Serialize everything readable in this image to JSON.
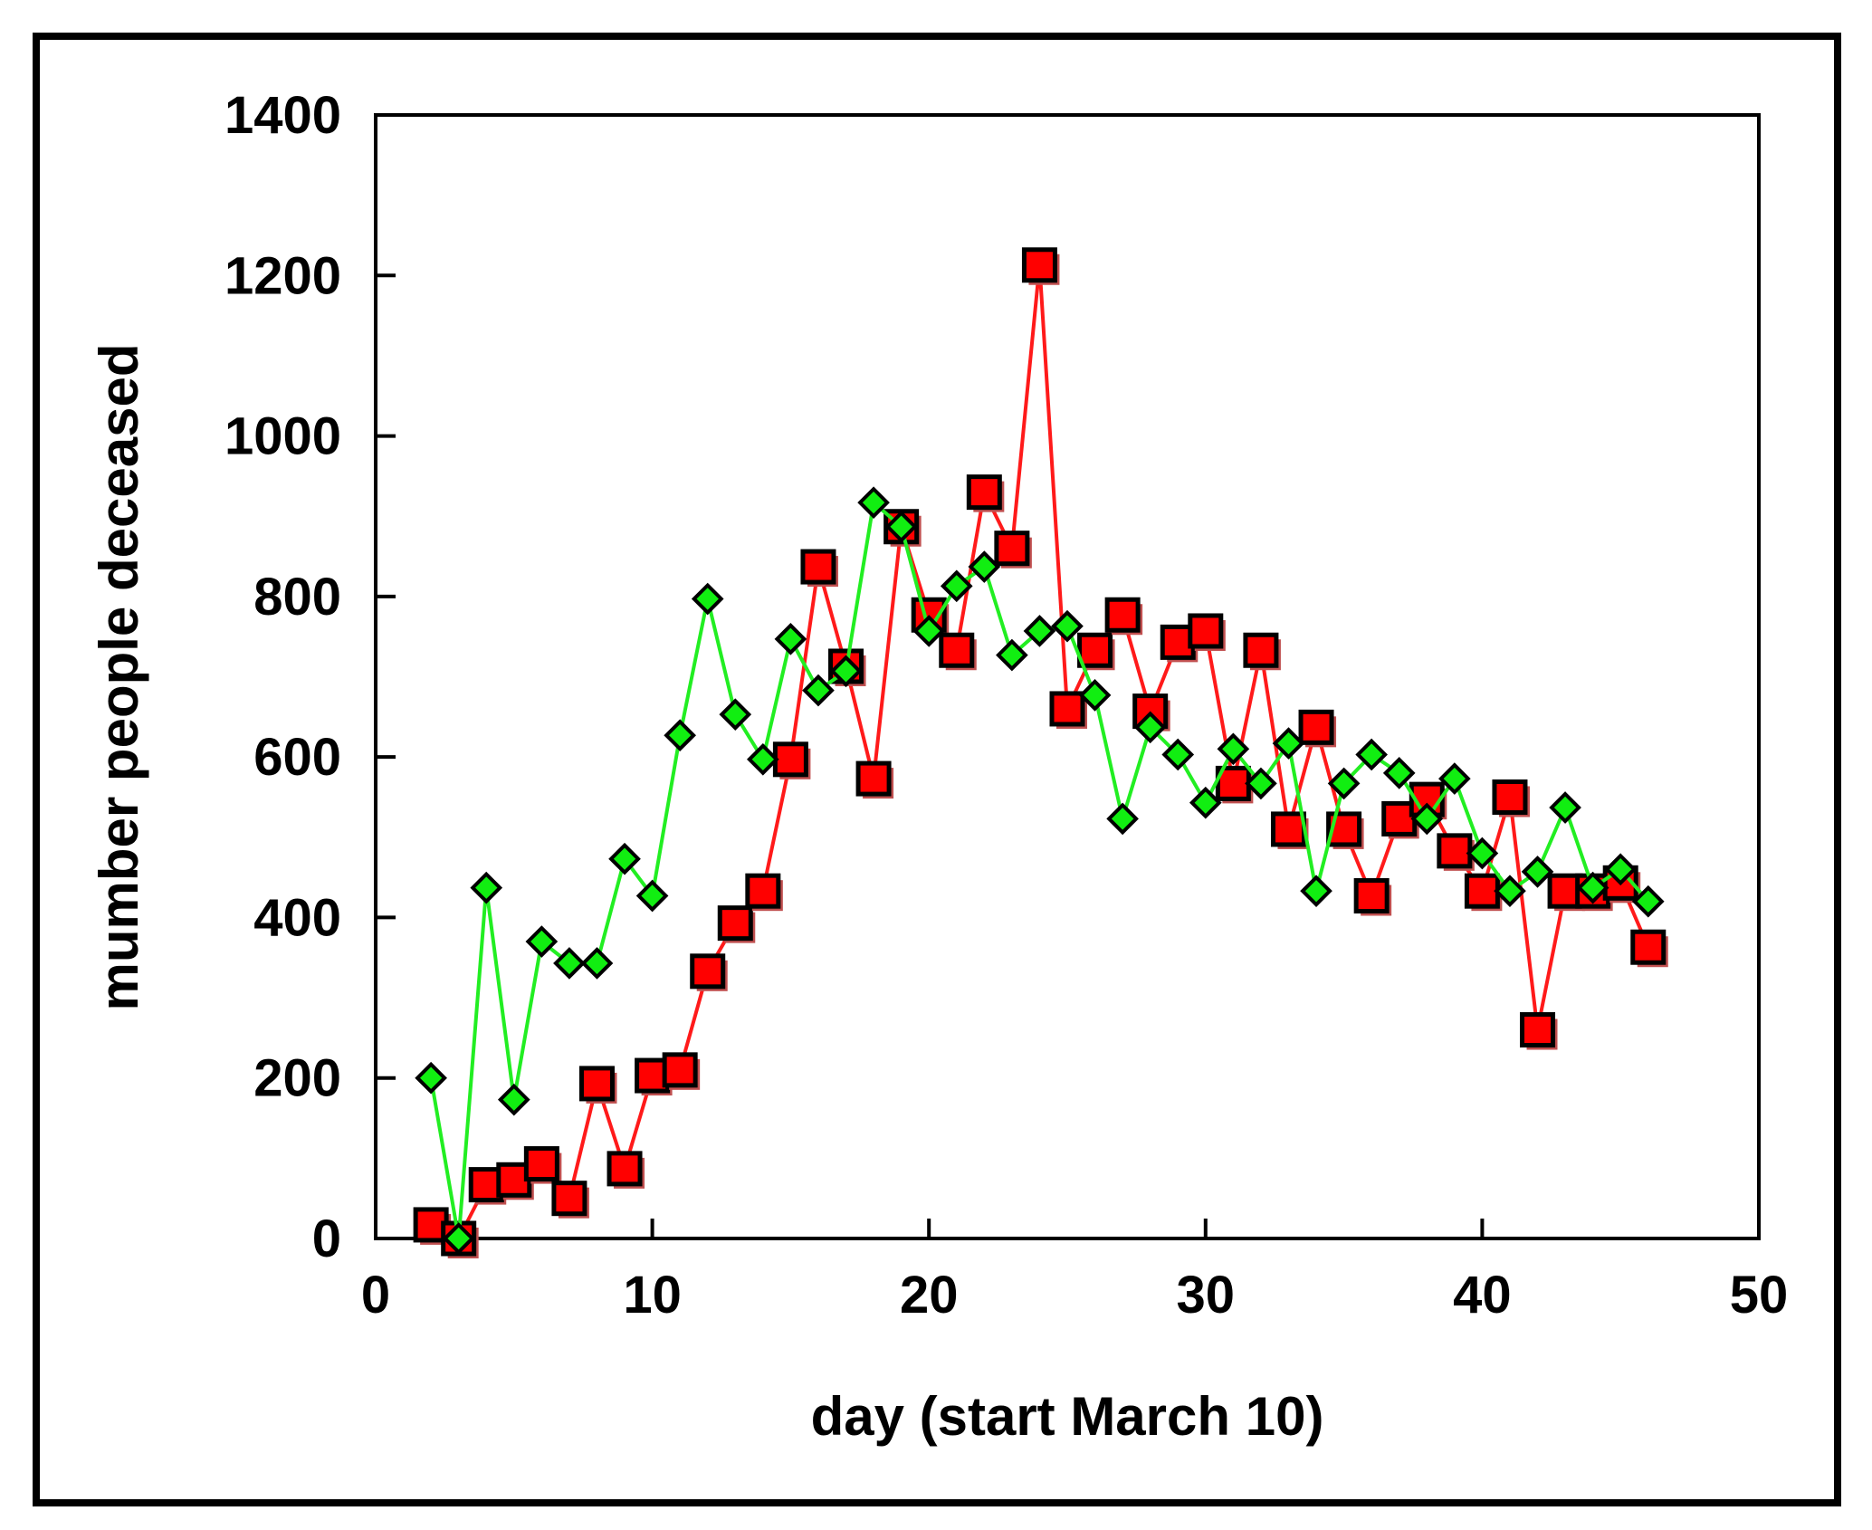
{
  "chart_data": {
    "type": "line",
    "xlabel": "day (start March 10)",
    "ylabel": "mumber people deceased",
    "xlim": [
      0,
      50
    ],
    "ylim": [
      0,
      1400
    ],
    "xticks": [
      0,
      10,
      20,
      30,
      40,
      50
    ],
    "yticks": [
      0,
      200,
      400,
      600,
      800,
      1000,
      1200,
      1400
    ],
    "grid": false,
    "legend": "none",
    "series": [
      {
        "marker": "square",
        "line_color": "#ff1a1a",
        "marker_fill": "#ff0000",
        "x": [
          2,
          3,
          4,
          5,
          6,
          7,
          8,
          9,
          10,
          11,
          12,
          13,
          14,
          15,
          16,
          17,
          18,
          19,
          20,
          21,
          22,
          23,
          24,
          25,
          26,
          27,
          28,
          29,
          30,
          31,
          32,
          33,
          34,
          35,
          36,
          37,
          38,
          39,
          40,
          41,
          42,
          43,
          44,
          45,
          46
        ],
        "y": [
          17,
          0,
          67,
          73,
          93,
          50,
          193,
          87,
          203,
          210,
          333,
          393,
          433,
          597,
          837,
          713,
          573,
          887,
          777,
          733,
          930,
          860,
          1213,
          660,
          733,
          777,
          657,
          743,
          757,
          567,
          733,
          510,
          637,
          510,
          427,
          523,
          547,
          483,
          433,
          550,
          260,
          433,
          433,
          443,
          363
        ]
      },
      {
        "marker": "diamond",
        "line_color": "#22ee22",
        "marker_fill": "#11ee11",
        "x": [
          2,
          3,
          4,
          5,
          6,
          7,
          8,
          9,
          10,
          11,
          12,
          13,
          14,
          15,
          16,
          17,
          18,
          19,
          20,
          21,
          22,
          23,
          24,
          25,
          26,
          27,
          28,
          29,
          30,
          31,
          32,
          33,
          34,
          35,
          36,
          37,
          38,
          39,
          40,
          41,
          42,
          43,
          44,
          45,
          46
        ],
        "y": [
          200,
          0,
          437,
          173,
          370,
          343,
          343,
          473,
          427,
          627,
          797,
          653,
          597,
          747,
          683,
          707,
          917,
          887,
          757,
          813,
          837,
          727,
          757,
          763,
          677,
          523,
          637,
          603,
          543,
          610,
          567,
          617,
          433,
          567,
          603,
          580,
          523,
          573,
          480,
          433,
          457,
          537,
          437,
          460,
          420
        ]
      }
    ]
  }
}
